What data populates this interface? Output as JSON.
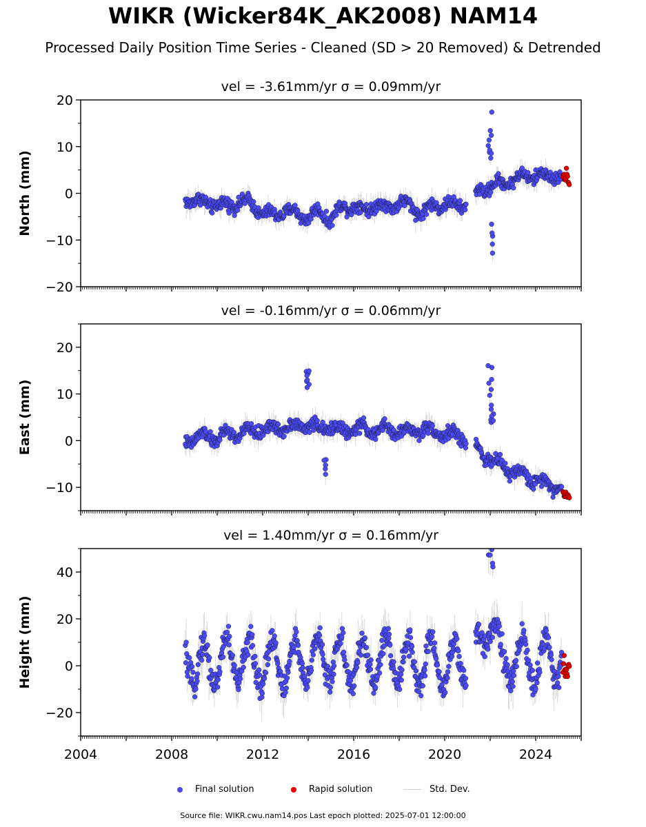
{
  "title": "WIKR (Wicker84K_AK2008) NAM14",
  "subtitle": "Processed Daily Position Time Series - Cleaned (SD > 20 Removed) & Detrended",
  "legend": {
    "final": "Final solution",
    "rapid": "Rapid solution",
    "std": "Std. Dev."
  },
  "source": "Source file: WIKR.cwu.nam14.pos  Last epoch plotted: 2025-07-01 12:00:00",
  "colors": {
    "final": "#4b4bf5",
    "rapid": "#e00000",
    "std": "#9a9a9a"
  },
  "chart_data": [
    {
      "type": "scatter",
      "component": "north",
      "title": "vel = -3.61mm/yr   σ = 0.09mm/yr",
      "ylabel": "North (mm)",
      "xlim": [
        2004,
        2026
      ],
      "ylim": [
        -20,
        20
      ],
      "yticks": [
        -20,
        -10,
        0,
        10,
        20
      ],
      "ytick_labels": [
        "−20",
        "−10",
        "0",
        "10",
        "20"
      ],
      "xticks": [
        2004,
        2008,
        2012,
        2016,
        2020,
        2024
      ],
      "show_xtick_labels": false,
      "series": [
        {
          "name": "Final solution",
          "x": [
            2008.75,
            2009.0,
            2009.5,
            2010.0,
            2010.5,
            2011.0,
            2011.5,
            2012.0,
            2012.5,
            2013.0,
            2013.5,
            2014.0,
            2014.5,
            2015.0,
            2015.5,
            2016.0,
            2016.5,
            2017.0,
            2017.5,
            2018.0,
            2018.5,
            2019.0,
            2019.5,
            2020.0,
            2020.5,
            2021.0,
            2021.5,
            2022.0,
            2022.5,
            2023.0,
            2023.5,
            2024.0,
            2024.5,
            2025.0
          ],
          "y": [
            -1.5,
            -1.0,
            -2.5,
            -2.0,
            -3.0,
            -1.5,
            -2.5,
            -4.0,
            -5.0,
            -3.5,
            -4.5,
            -5.0,
            -4.0,
            -5.5,
            -3.0,
            -2.5,
            -4.0,
            -2.0,
            -3.5,
            -1.5,
            -3.0,
            -4.0,
            -3.0,
            -2.0,
            -3.0,
            -2.0,
            0.5,
            1.5,
            2.0,
            3.0,
            3.5,
            4.0,
            3.5,
            4.0
          ]
        },
        {
          "name": "Rapid solution",
          "x": [
            2025.2,
            2025.25,
            2025.3,
            2025.35,
            2025.4,
            2025.45
          ],
          "y": [
            3.0,
            4.0,
            2.5,
            5.0,
            3.5,
            2.0
          ]
        }
      ]
    },
    {
      "type": "scatter",
      "component": "east",
      "title": "vel = -0.16mm/yr   σ = 0.06mm/yr",
      "ylabel": "East (mm)",
      "xlim": [
        2004,
        2026
      ],
      "ylim": [
        -15,
        25
      ],
      "yticks": [
        -10,
        0,
        10,
        20
      ],
      "ytick_labels": [
        "−10",
        "0",
        "10",
        "20"
      ],
      "xticks": [
        2004,
        2008,
        2012,
        2016,
        2020,
        2024
      ],
      "show_xtick_labels": false,
      "series": [
        {
          "name": "Final solution",
          "x": [
            2008.75,
            2009.0,
            2009.5,
            2010.0,
            2010.5,
            2011.0,
            2011.5,
            2012.0,
            2012.5,
            2013.0,
            2013.5,
            2014.0,
            2014.5,
            2015.0,
            2015.5,
            2016.0,
            2016.5,
            2017.0,
            2017.5,
            2018.0,
            2018.5,
            2019.0,
            2019.5,
            2020.0,
            2020.5,
            2021.0,
            2021.5,
            2022.0,
            2022.5,
            2023.0,
            2023.5,
            2024.0,
            2024.5,
            2025.0
          ],
          "y": [
            0.0,
            0.5,
            1.0,
            0.5,
            1.5,
            1.5,
            2.0,
            2.5,
            2.5,
            3.0,
            3.0,
            3.5,
            2.5,
            3.0,
            2.0,
            2.5,
            2.5,
            2.0,
            2.5,
            2.0,
            2.0,
            2.5,
            2.0,
            1.5,
            1.0,
            0.5,
            -2.0,
            -4.0,
            -5.5,
            -6.5,
            -7.5,
            -8.5,
            -9.0,
            -10.0
          ]
        },
        {
          "name": "Rapid solution",
          "x": [
            2025.2,
            2025.25,
            2025.3,
            2025.35,
            2025.4,
            2025.45
          ],
          "y": [
            -10.5,
            -11.5,
            -12.0,
            -11.0,
            -12.5,
            -11.8
          ]
        }
      ]
    },
    {
      "type": "scatter",
      "component": "height",
      "title": "vel = 1.40mm/yr   σ = 0.16mm/yr",
      "ylabel": "Height (mm)",
      "xlim": [
        2004,
        2026
      ],
      "ylim": [
        -30,
        50
      ],
      "yticks": [
        -20,
        0,
        20,
        40
      ],
      "ytick_labels": [
        "−20",
        "0",
        "20",
        "40"
      ],
      "xticks": [
        2004,
        2008,
        2012,
        2016,
        2020,
        2024
      ],
      "xtick_labels": [
        "2004",
        "2008",
        "2012",
        "2016",
        "2020",
        "2024"
      ],
      "show_xtick_labels": true,
      "series": [
        {
          "name": "Final solution",
          "x": [
            2008.75,
            2009.0,
            2009.5,
            2010.0,
            2010.5,
            2011.0,
            2011.5,
            2012.0,
            2012.5,
            2013.0,
            2013.5,
            2014.0,
            2014.5,
            2015.0,
            2015.5,
            2016.0,
            2016.5,
            2017.0,
            2017.5,
            2018.0,
            2018.5,
            2019.0,
            2019.5,
            2020.0,
            2020.5,
            2021.0,
            2021.5,
            2022.0,
            2022.5,
            2023.0,
            2023.5,
            2024.0,
            2024.5,
            2025.0
          ],
          "y": [
            5.0,
            -5.0,
            5.0,
            -3.0,
            8.0,
            -2.0,
            6.0,
            -4.0,
            7.0,
            -5.0,
            6.0,
            -3.0,
            9.0,
            -2.0,
            7.0,
            -4.0,
            6.0,
            -3.0,
            8.0,
            -2.0,
            6.0,
            -4.0,
            7.0,
            -5.0,
            5.0,
            -3.0,
            10.0,
            20.0,
            5.0,
            -2.0,
            8.0,
            -4.0,
            6.0,
            0.0
          ]
        },
        {
          "name": "Rapid solution",
          "x": [
            2025.2,
            2025.25,
            2025.3,
            2025.35,
            2025.4,
            2025.45
          ],
          "y": [
            0.0,
            3.0,
            -2.0,
            1.0,
            -4.0,
            2.0
          ]
        }
      ]
    }
  ]
}
